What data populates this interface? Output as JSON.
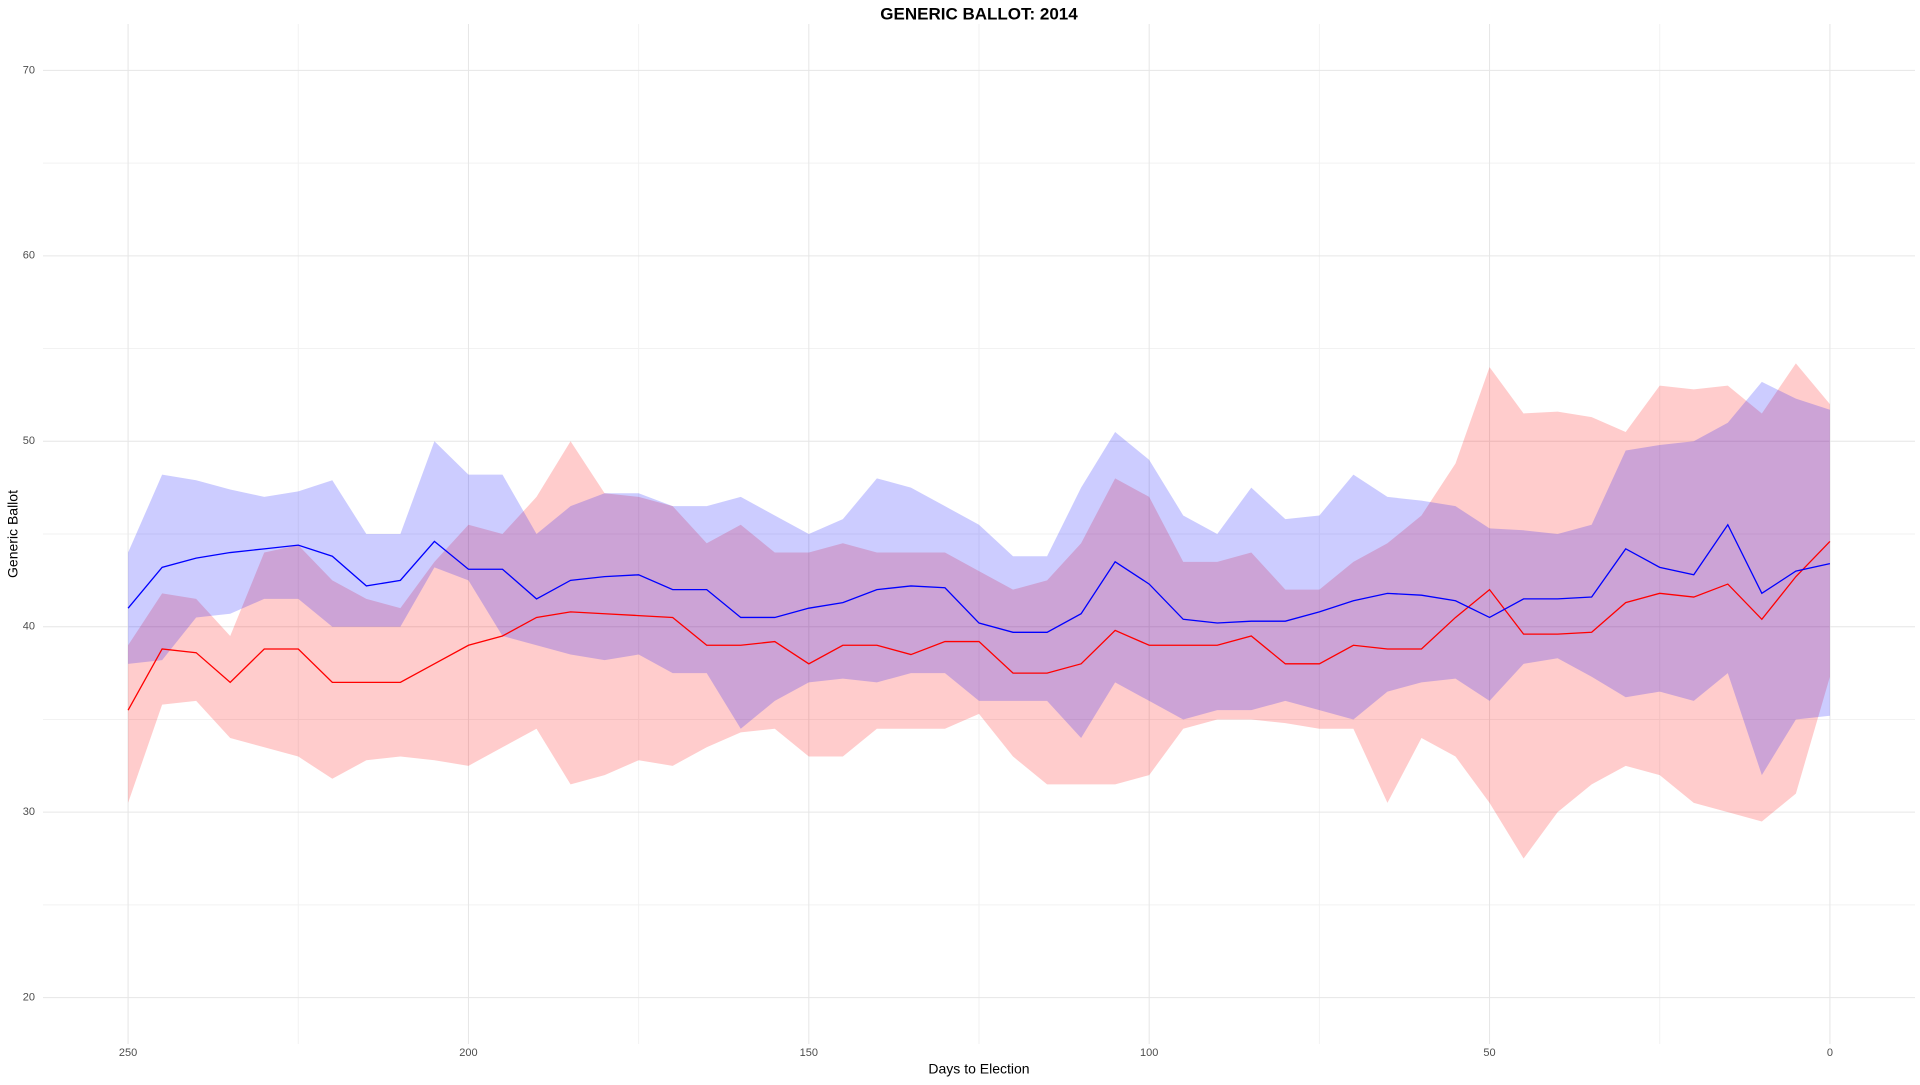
{
  "chart_data": {
    "type": "line",
    "title": "GENERIC BALLOT: 2014",
    "x_label": "Days to Election",
    "y_label": "Generic Ballot",
    "x": [
      250,
      245,
      240,
      235,
      230,
      225,
      220,
      215,
      210,
      205,
      200,
      195,
      190,
      185,
      180,
      175,
      170,
      165,
      160,
      155,
      150,
      145,
      140,
      135,
      130,
      125,
      120,
      115,
      110,
      105,
      100,
      95,
      90,
      85,
      80,
      75,
      70,
      65,
      60,
      55,
      50,
      45,
      40,
      35,
      30,
      25,
      20,
      15,
      10,
      5,
      0
    ],
    "series": [
      {
        "color": "#0000ff",
        "band_color": "#0000ff",
        "values": [
          41,
          43.2,
          43.7,
          44,
          44.2,
          44.4,
          43.8,
          42.2,
          42.5,
          44.6,
          43.1,
          43.1,
          41.5,
          42.5,
          42.7,
          42.8,
          42,
          42,
          40.5,
          40.5,
          41,
          41.3,
          42,
          42.2,
          42.1,
          40.2,
          39.7,
          39.7,
          40.7,
          43.5,
          42.3,
          40.4,
          40.2,
          40.3,
          40.3,
          40.8,
          41.4,
          41.8,
          41.7,
          41.4,
          40.5,
          41.5,
          41.5,
          41.6,
          44.2,
          43.2,
          42.8,
          45.5,
          41.8,
          43,
          43.4
        ],
        "lower": [
          38,
          38.2,
          40.5,
          40.7,
          41.5,
          41.5,
          40,
          40,
          40,
          43.2,
          42.5,
          39.5,
          39,
          38.5,
          38.2,
          38.5,
          37.5,
          37.5,
          34.5,
          36,
          37,
          37.2,
          37,
          37.5,
          37.5,
          36,
          36,
          36,
          34,
          37,
          36,
          35,
          35.5,
          35.5,
          36,
          35.5,
          35,
          36.5,
          37,
          37.2,
          36,
          38,
          38.3,
          37.3,
          36.2,
          36.5,
          36,
          37.5,
          32,
          35,
          35.2
        ],
        "upper": [
          44,
          48.2,
          47.9,
          47.4,
          47,
          47.3,
          47.9,
          45,
          45,
          50,
          48.2,
          48.2,
          45,
          46.5,
          47.2,
          47.2,
          46.5,
          46.5,
          47,
          46,
          45,
          45.8,
          48,
          47.5,
          46.5,
          45.5,
          43.8,
          43.8,
          47.5,
          50.5,
          49,
          46,
          45,
          47.5,
          45.8,
          46,
          48.2,
          47,
          46.8,
          46.5,
          45.3,
          45.2,
          45,
          45.5,
          49.5,
          49.8,
          50,
          51,
          53.2,
          52.3,
          51.7
        ]
      },
      {
        "color": "#ff0000",
        "band_color": "#ff0000",
        "values": [
          35.5,
          38.8,
          38.6,
          37,
          38.8,
          38.8,
          37,
          37,
          37,
          38,
          39,
          39.5,
          40.5,
          40.8,
          40.7,
          40.6,
          40.5,
          39,
          39,
          39.2,
          38,
          39,
          39,
          38.5,
          39.2,
          39.2,
          37.5,
          37.5,
          38,
          39.8,
          39,
          39,
          39,
          39.5,
          38,
          38,
          39,
          38.8,
          38.8,
          40.5,
          42,
          39.6,
          39.6,
          39.7,
          41.3,
          41.8,
          41.6,
          42.3,
          40.4,
          42.7,
          44.6
        ],
        "lower": [
          30.5,
          35.8,
          36,
          34,
          33.5,
          33,
          31.8,
          32.8,
          33,
          32.8,
          32.5,
          33.5,
          34.5,
          31.5,
          32,
          32.8,
          32.5,
          33.5,
          34.3,
          34.5,
          33,
          33,
          34.5,
          34.5,
          34.5,
          35.3,
          33,
          31.5,
          31.5,
          31.5,
          32,
          34.5,
          35,
          35,
          34.8,
          34.5,
          34.5,
          30.5,
          34,
          33,
          30.5,
          27.5,
          30,
          31.5,
          32.5,
          32,
          30.5,
          30,
          29.5,
          31,
          37.3
        ],
        "upper": [
          39,
          41.8,
          41.5,
          39.5,
          44,
          44.4,
          42.5,
          41.5,
          41,
          43.5,
          45.5,
          45,
          47,
          50,
          47.2,
          47,
          46.5,
          44.5,
          45.5,
          44,
          44,
          44.5,
          44,
          44,
          44,
          43,
          42,
          42.5,
          44.5,
          48,
          47,
          43.5,
          43.5,
          44,
          42,
          42,
          43.5,
          44.5,
          46,
          48.8,
          54,
          51.5,
          51.6,
          51.3,
          50.5,
          53,
          52.8,
          53,
          51.5,
          54.2,
          52
        ]
      }
    ],
    "xlim": [
      262.5,
      -12.5
    ],
    "xticks": [
      250,
      200,
      150,
      100,
      50,
      0
    ],
    "ylim": [
      17.5,
      72.5
    ],
    "yticks": [
      20,
      30,
      40,
      50,
      60,
      70
    ],
    "grid": true
  }
}
